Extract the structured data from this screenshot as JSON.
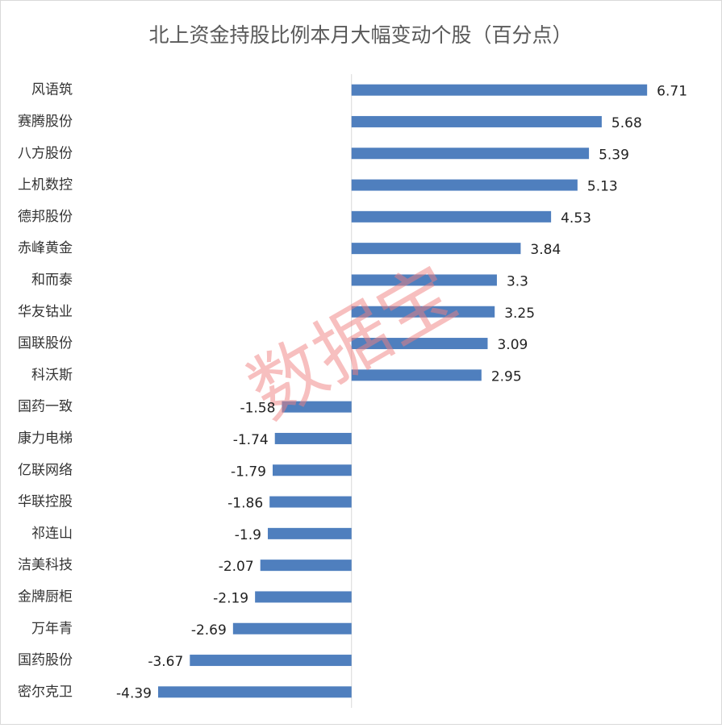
{
  "chart_data": {
    "type": "bar",
    "orientation": "horizontal",
    "title": "北上资金持股比例本月大幅变动个股（百分点）",
    "watermark": "数据宝",
    "categories": [
      "风语筑",
      "赛腾股份",
      "八方股份",
      "上机数控",
      "德邦股份",
      "赤峰黄金",
      "和而泰",
      "华友钴业",
      "国联股份",
      "科沃斯",
      "国药一致",
      "康力电梯",
      "亿联网络",
      "华联控股",
      "祁连山",
      "洁美科技",
      "金牌厨柜",
      "万年青",
      "国药股份",
      "密尔克卫"
    ],
    "values": [
      6.71,
      5.68,
      5.39,
      5.13,
      4.53,
      3.84,
      3.3,
      3.25,
      3.09,
      2.95,
      -1.58,
      -1.74,
      -1.79,
      -1.86,
      -1.9,
      -2.07,
      -2.19,
      -2.69,
      -3.67,
      -4.39
    ],
    "color": "#4f7fbe",
    "xlim": [
      -4.5,
      7
    ]
  }
}
